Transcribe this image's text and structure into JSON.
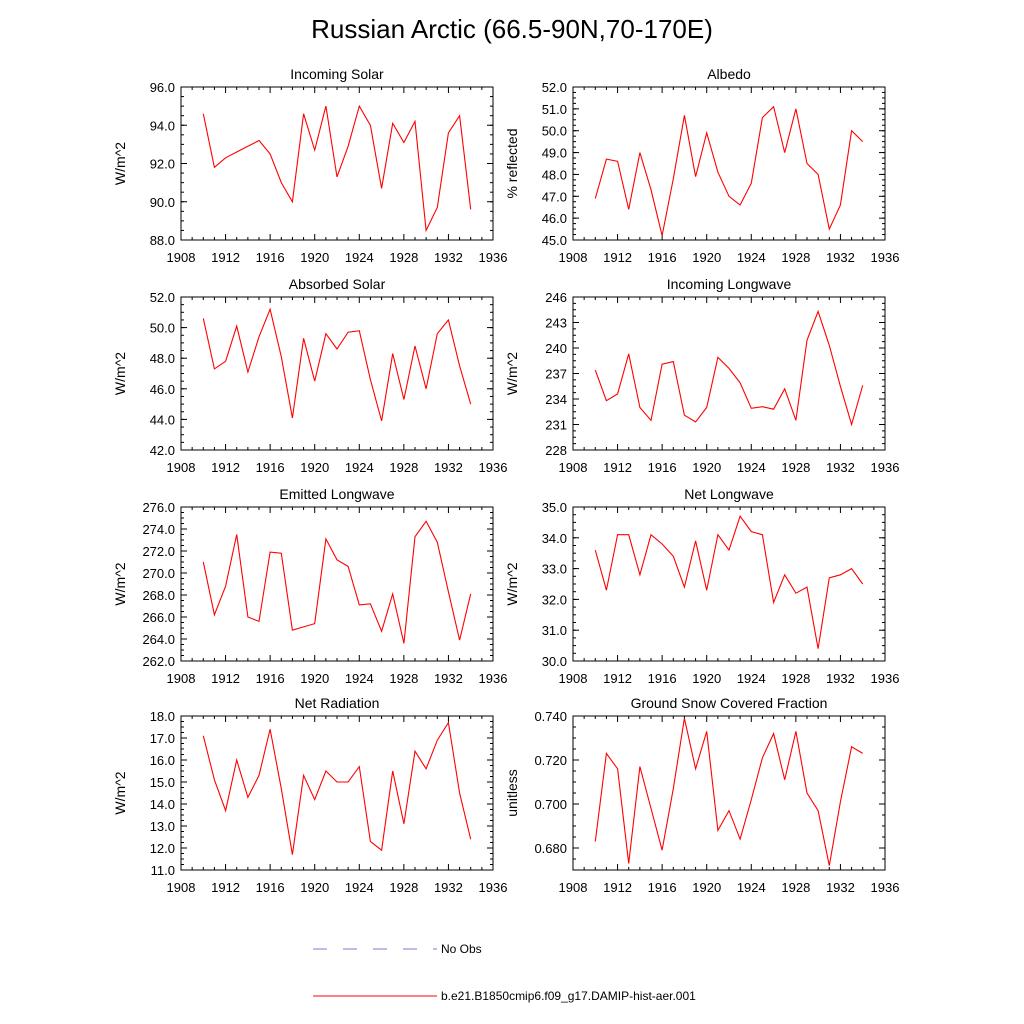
{
  "title": "Russian Arctic (66.5-90N,70-170E)",
  "legend": {
    "items": [
      {
        "label": "No Obs",
        "color": "#7b7bd6",
        "style": "dashed"
      },
      {
        "label": "b.e21.B1850cmip6.f09_g17.DAMIP-hist-aer.001",
        "color": "#ff0000",
        "style": "solid"
      }
    ]
  },
  "chart_data": [
    {
      "type": "line",
      "title": "Incoming Solar",
      "ylabel": "W/m^2",
      "xlim": [
        1908,
        1936
      ],
      "ylim": [
        88,
        96
      ],
      "xticks": [
        1908,
        1912,
        1916,
        1920,
        1924,
        1928,
        1932,
        1936
      ],
      "yticks": [
        "88.0",
        "90.0",
        "92.0",
        "94.0",
        "96.0"
      ],
      "color": "#ff0000",
      "x": [
        1910,
        1911,
        1912,
        1913,
        1914,
        1915,
        1916,
        1917,
        1918,
        1919,
        1920,
        1921,
        1922,
        1923,
        1924,
        1925,
        1926,
        1927,
        1928,
        1929,
        1930,
        1931,
        1932,
        1933,
        1934
      ],
      "values": [
        94.6,
        91.8,
        92.3,
        92.6,
        92.9,
        93.2,
        92.5,
        91.0,
        90.0,
        94.6,
        92.7,
        95.0,
        91.3,
        92.9,
        95.0,
        94.0,
        90.7,
        94.1,
        93.1,
        94.2,
        88.5,
        89.7,
        93.6,
        94.5,
        89.6
      ]
    },
    {
      "type": "line",
      "title": "Albedo",
      "ylabel": "% reflected",
      "xlim": [
        1908,
        1936
      ],
      "ylim": [
        45,
        52
      ],
      "xticks": [
        1908,
        1912,
        1916,
        1920,
        1924,
        1928,
        1932,
        1936
      ],
      "yticks": [
        "45.0",
        "46.0",
        "47.0",
        "48.0",
        "49.0",
        "50.0",
        "51.0",
        "52.0"
      ],
      "color": "#ff0000",
      "x": [
        1910,
        1911,
        1912,
        1913,
        1914,
        1915,
        1916,
        1917,
        1918,
        1919,
        1920,
        1921,
        1922,
        1923,
        1924,
        1925,
        1926,
        1927,
        1928,
        1929,
        1930,
        1931,
        1932,
        1933,
        1934
      ],
      "values": [
        46.9,
        48.7,
        48.6,
        46.4,
        49.0,
        47.3,
        45.2,
        47.8,
        50.7,
        47.9,
        49.9,
        48.1,
        47.0,
        46.6,
        47.6,
        50.6,
        51.1,
        49.0,
        51.0,
        48.5,
        48.0,
        45.5,
        46.6,
        50.0,
        49.5
      ]
    },
    {
      "type": "line",
      "title": "Absorbed Solar",
      "ylabel": "W/m^2",
      "xlim": [
        1908,
        1936
      ],
      "ylim": [
        42,
        52
      ],
      "xticks": [
        1908,
        1912,
        1916,
        1920,
        1924,
        1928,
        1932,
        1936
      ],
      "yticks": [
        "42.0",
        "44.0",
        "46.0",
        "48.0",
        "50.0",
        "52.0"
      ],
      "color": "#ff0000",
      "x": [
        1910,
        1911,
        1912,
        1913,
        1914,
        1915,
        1916,
        1917,
        1918,
        1919,
        1920,
        1921,
        1922,
        1923,
        1924,
        1925,
        1926,
        1927,
        1928,
        1929,
        1930,
        1931,
        1932,
        1933,
        1934
      ],
      "values": [
        50.6,
        47.3,
        47.8,
        50.1,
        47.1,
        49.4,
        51.2,
        48.1,
        44.1,
        49.3,
        46.5,
        49.6,
        48.6,
        49.7,
        49.8,
        46.6,
        43.9,
        48.3,
        45.3,
        48.8,
        46.0,
        49.6,
        50.5,
        47.5,
        45.0
      ]
    },
    {
      "type": "line",
      "title": "Incoming Longwave",
      "ylabel": "W/m^2",
      "xlim": [
        1908,
        1936
      ],
      "ylim": [
        228,
        246
      ],
      "xticks": [
        1908,
        1912,
        1916,
        1920,
        1924,
        1928,
        1932,
        1936
      ],
      "yticks": [
        "228",
        "231",
        "234",
        "237",
        "240",
        "243",
        "246"
      ],
      "color": "#ff0000",
      "x": [
        1910,
        1911,
        1912,
        1913,
        1914,
        1915,
        1916,
        1917,
        1918,
        1919,
        1920,
        1921,
        1922,
        1923,
        1924,
        1925,
        1926,
        1927,
        1928,
        1929,
        1930,
        1931,
        1932,
        1933,
        1934
      ],
      "values": [
        237.4,
        233.8,
        234.6,
        239.3,
        233.0,
        231.5,
        238.1,
        238.4,
        232.1,
        231.3,
        233.0,
        238.9,
        237.6,
        235.9,
        232.9,
        233.1,
        232.8,
        235.2,
        231.5,
        240.9,
        244.3,
        240.3,
        235.5,
        231.0,
        235.6
      ]
    },
    {
      "type": "line",
      "title": "Emitted Longwave",
      "ylabel": "W/m^2",
      "xlim": [
        1908,
        1936
      ],
      "ylim": [
        262,
        276
      ],
      "xticks": [
        1908,
        1912,
        1916,
        1920,
        1924,
        1928,
        1932,
        1936
      ],
      "yticks": [
        "262.0",
        "264.0",
        "266.0",
        "268.0",
        "270.0",
        "272.0",
        "274.0",
        "276.0"
      ],
      "color": "#ff0000",
      "x": [
        1910,
        1911,
        1912,
        1913,
        1914,
        1915,
        1916,
        1917,
        1918,
        1919,
        1920,
        1921,
        1922,
        1923,
        1924,
        1925,
        1926,
        1927,
        1928,
        1929,
        1930,
        1931,
        1932,
        1933,
        1934
      ],
      "values": [
        271.0,
        266.2,
        268.8,
        273.5,
        266.0,
        265.6,
        271.9,
        271.8,
        264.8,
        265.1,
        265.4,
        273.1,
        271.2,
        270.6,
        267.1,
        267.2,
        264.7,
        268.1,
        263.6,
        273.3,
        274.7,
        272.8,
        268.3,
        263.9,
        268.1
      ]
    },
    {
      "type": "line",
      "title": "Net Longwave",
      "ylabel": "W/m^2",
      "xlim": [
        1908,
        1936
      ],
      "ylim": [
        30,
        35
      ],
      "xticks": [
        1908,
        1912,
        1916,
        1920,
        1924,
        1928,
        1932,
        1936
      ],
      "yticks": [
        "30.0",
        "31.0",
        "32.0",
        "33.0",
        "34.0",
        "35.0"
      ],
      "color": "#ff0000",
      "x": [
        1910,
        1911,
        1912,
        1913,
        1914,
        1915,
        1916,
        1917,
        1918,
        1919,
        1920,
        1921,
        1922,
        1923,
        1924,
        1925,
        1926,
        1927,
        1928,
        1929,
        1930,
        1931,
        1932,
        1933,
        1934
      ],
      "values": [
        33.6,
        32.3,
        34.1,
        34.1,
        32.8,
        34.1,
        33.8,
        33.4,
        32.4,
        33.9,
        32.3,
        34.1,
        33.6,
        34.7,
        34.2,
        34.1,
        31.9,
        32.8,
        32.2,
        32.4,
        30.4,
        32.7,
        32.8,
        33.0,
        32.5
      ]
    },
    {
      "type": "line",
      "title": "Net Radiation",
      "ylabel": "W/m^2",
      "xlim": [
        1908,
        1936
      ],
      "ylim": [
        11,
        18
      ],
      "xticks": [
        1908,
        1912,
        1916,
        1920,
        1924,
        1928,
        1932,
        1936
      ],
      "yticks": [
        "11.0",
        "12.0",
        "13.0",
        "14.0",
        "15.0",
        "16.0",
        "17.0",
        "18.0"
      ],
      "color": "#ff0000",
      "x": [
        1910,
        1911,
        1912,
        1913,
        1914,
        1915,
        1916,
        1917,
        1918,
        1919,
        1920,
        1921,
        1922,
        1923,
        1924,
        1925,
        1926,
        1927,
        1928,
        1929,
        1930,
        1931,
        1932,
        1933,
        1934
      ],
      "values": [
        17.1,
        15.1,
        13.7,
        16.0,
        14.3,
        15.3,
        17.4,
        14.7,
        11.7,
        15.3,
        14.2,
        15.5,
        15.0,
        15.0,
        15.7,
        12.3,
        11.9,
        15.5,
        13.1,
        16.4,
        15.6,
        16.9,
        17.7,
        14.5,
        12.4
      ]
    },
    {
      "type": "line",
      "title": "Ground Snow Covered Fraction",
      "ylabel": "unitless",
      "xlim": [
        1908,
        1936
      ],
      "ylim": [
        0.67,
        0.74
      ],
      "xticks": [
        1908,
        1912,
        1916,
        1920,
        1924,
        1928,
        1932,
        1936
      ],
      "yticks": [
        "0.680",
        "0.700",
        "0.720",
        "0.740"
      ],
      "color": "#ff0000",
      "x": [
        1910,
        1911,
        1912,
        1913,
        1914,
        1915,
        1916,
        1917,
        1918,
        1919,
        1920,
        1921,
        1922,
        1923,
        1924,
        1925,
        1926,
        1927,
        1928,
        1929,
        1930,
        1931,
        1932,
        1933,
        1934
      ],
      "values": [
        0.683,
        0.723,
        0.716,
        0.673,
        0.717,
        0.698,
        0.679,
        0.707,
        0.739,
        0.716,
        0.733,
        0.688,
        0.697,
        0.684,
        0.702,
        0.721,
        0.732,
        0.711,
        0.733,
        0.705,
        0.697,
        0.672,
        0.701,
        0.726,
        0.723
      ]
    }
  ]
}
